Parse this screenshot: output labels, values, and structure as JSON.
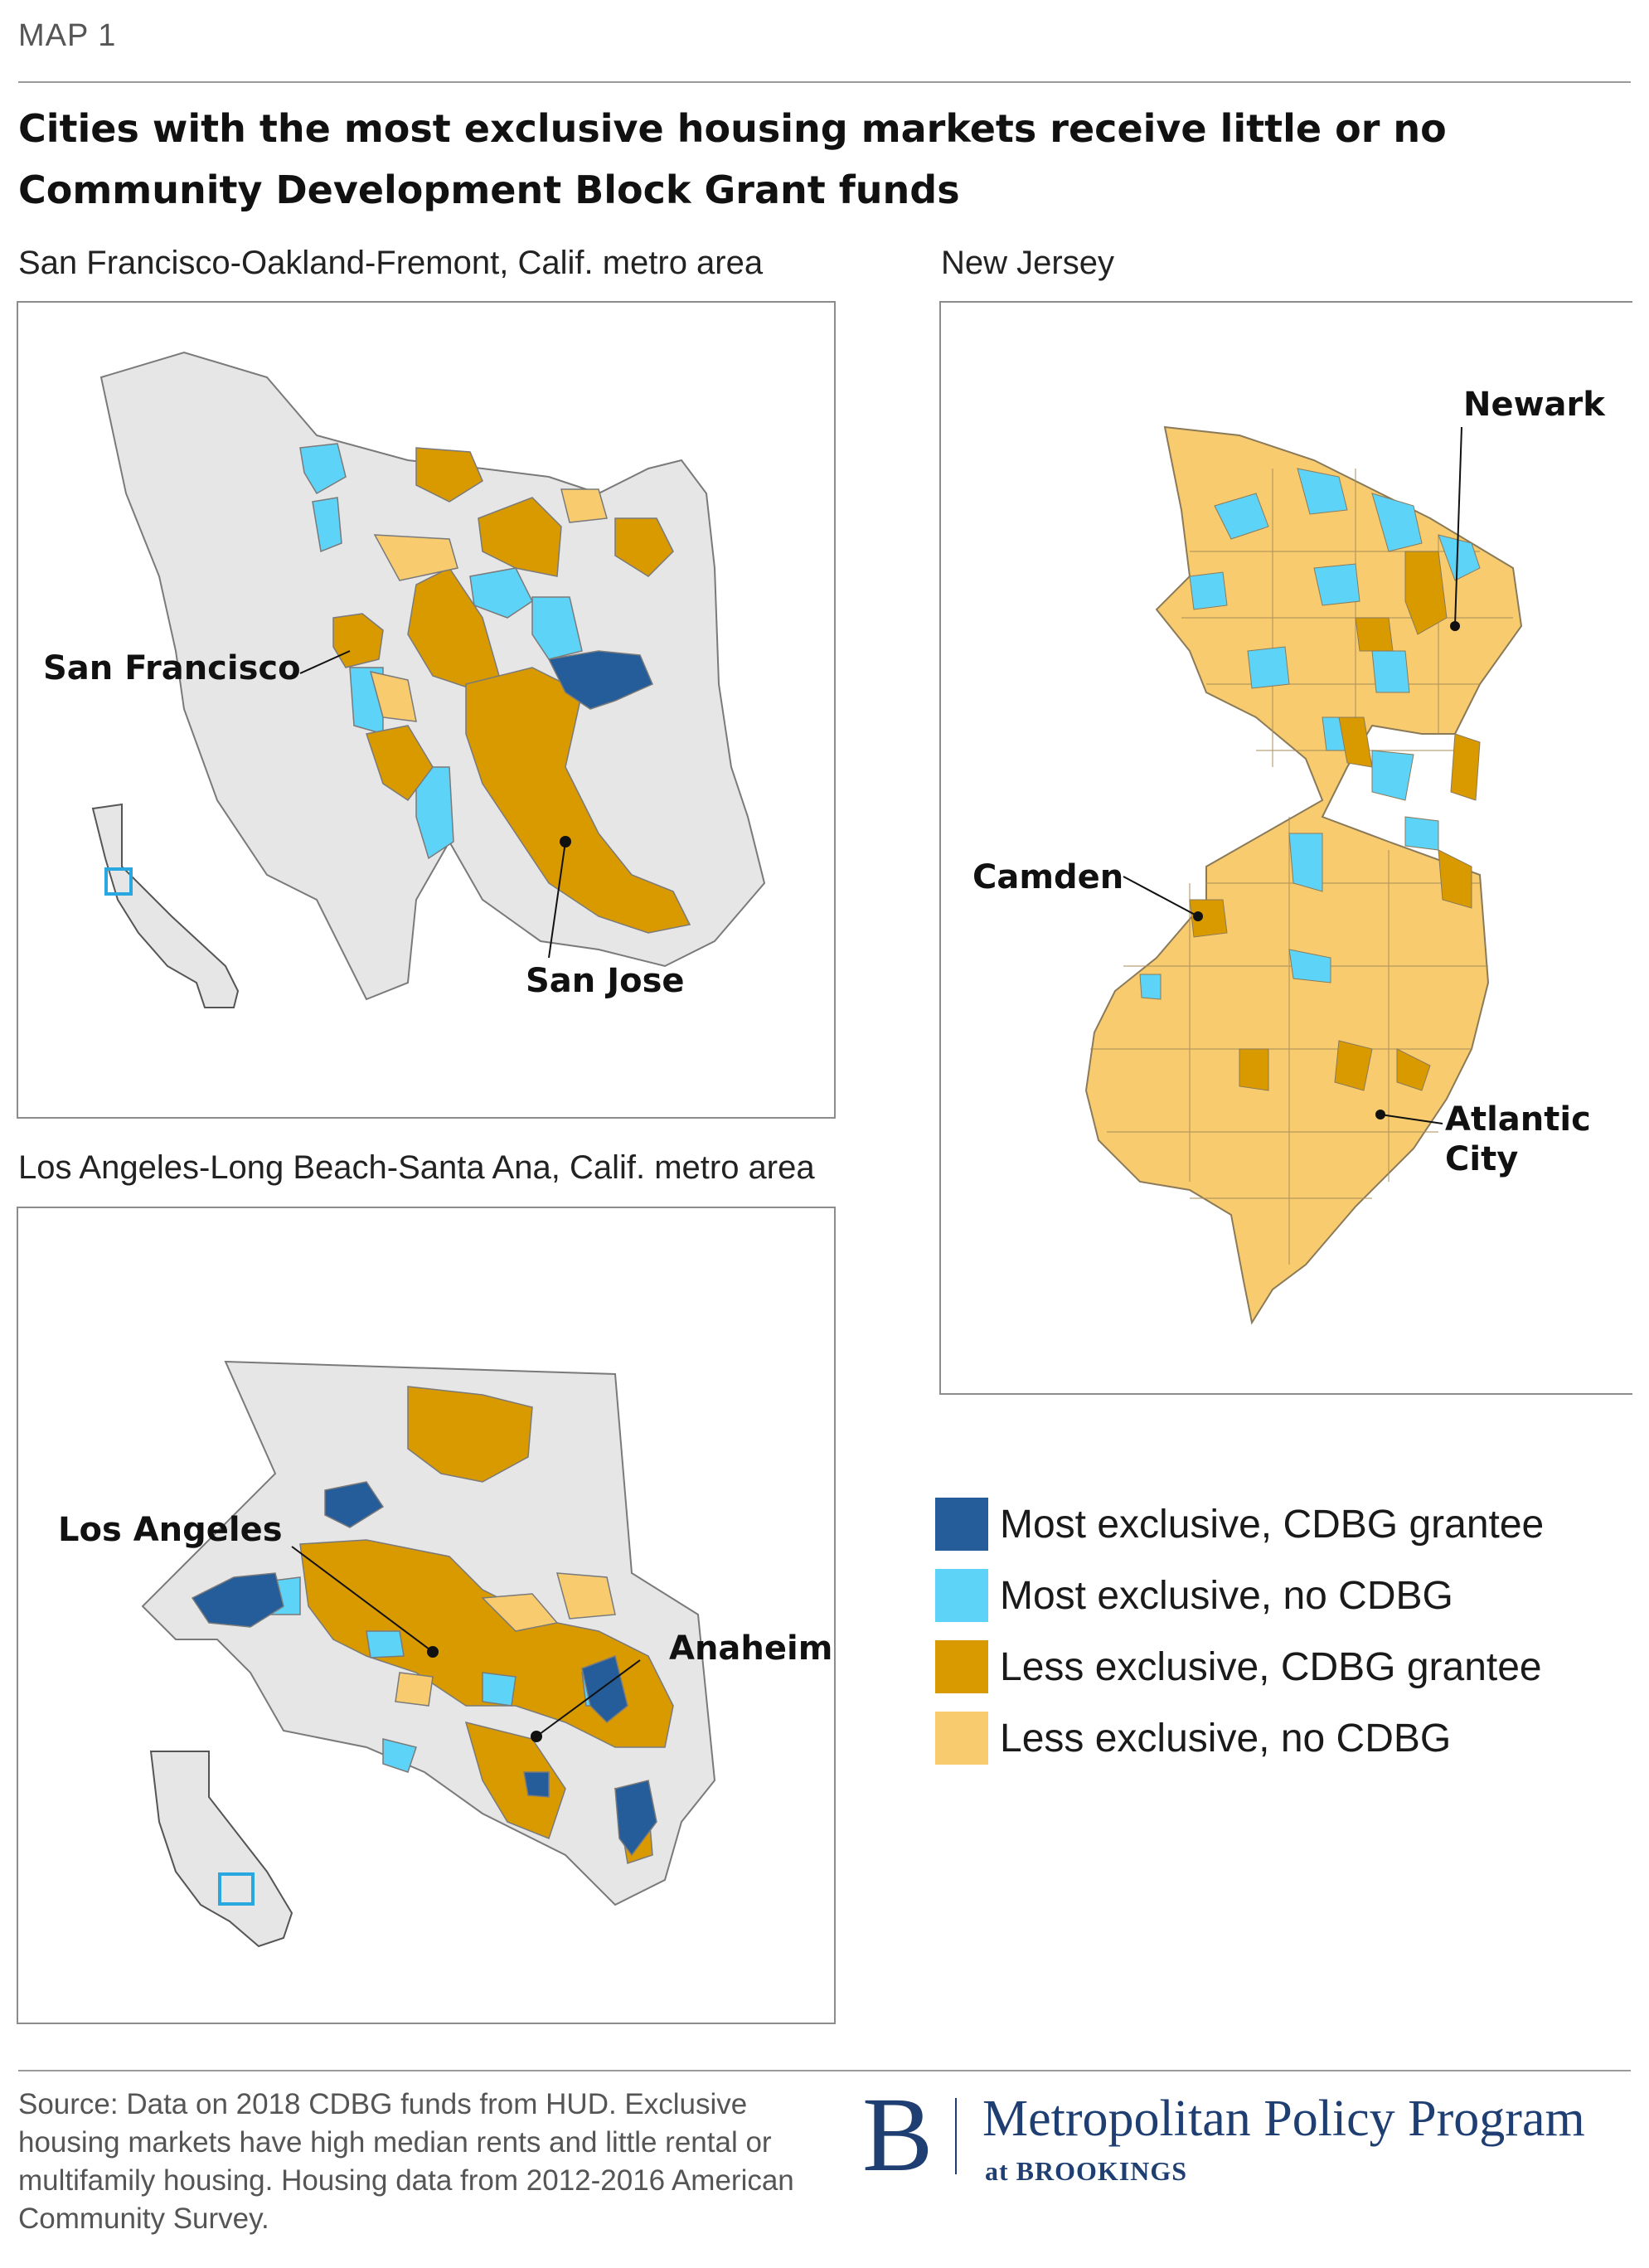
{
  "kicker": "MAP 1",
  "title": "Cities with the most exclusive housing markets receive little or no Community Development Block Grant funds",
  "panels": {
    "sf": {
      "subtitle": "San Francisco-Oakland-Fremont, Calif. metro area",
      "labels": {
        "san_francisco": "San Francisco",
        "san_jose": "San Jose"
      }
    },
    "nj": {
      "subtitle": "New Jersey",
      "labels": {
        "newark": "Newark",
        "camden": "Camden",
        "atlantic_1": "Atlantic",
        "atlantic_2": "City"
      }
    },
    "la": {
      "subtitle": "Los Angeles-Long Beach-Santa Ana, Calif. metro area",
      "labels": {
        "los_angeles": "Los Angeles",
        "anaheim": "Anaheim"
      }
    }
  },
  "legend": [
    {
      "label": "Most exclusive, CDBG grantee",
      "color": "#245d9a"
    },
    {
      "label": "Most exclusive, no CDBG",
      "color": "#5dd3f7"
    },
    {
      "label": "Less exclusive, CDBG grantee",
      "color": "#d99a00"
    },
    {
      "label": "Less exclusive, no CDBG",
      "color": "#f8cc6e"
    }
  ],
  "colors": {
    "outside": "#e6e6e6",
    "boundary": "#7a7a7a"
  },
  "source": "Source: Data on 2018 CDBG funds from HUD. Exclusive housing markets have high median rents and little rental or multifamily housing. Housing data from 2012-2016 American Community Survey.",
  "brand": {
    "mark": "B",
    "name": "Metropolitan Policy Program",
    "sub": "at BROOKINGS"
  }
}
